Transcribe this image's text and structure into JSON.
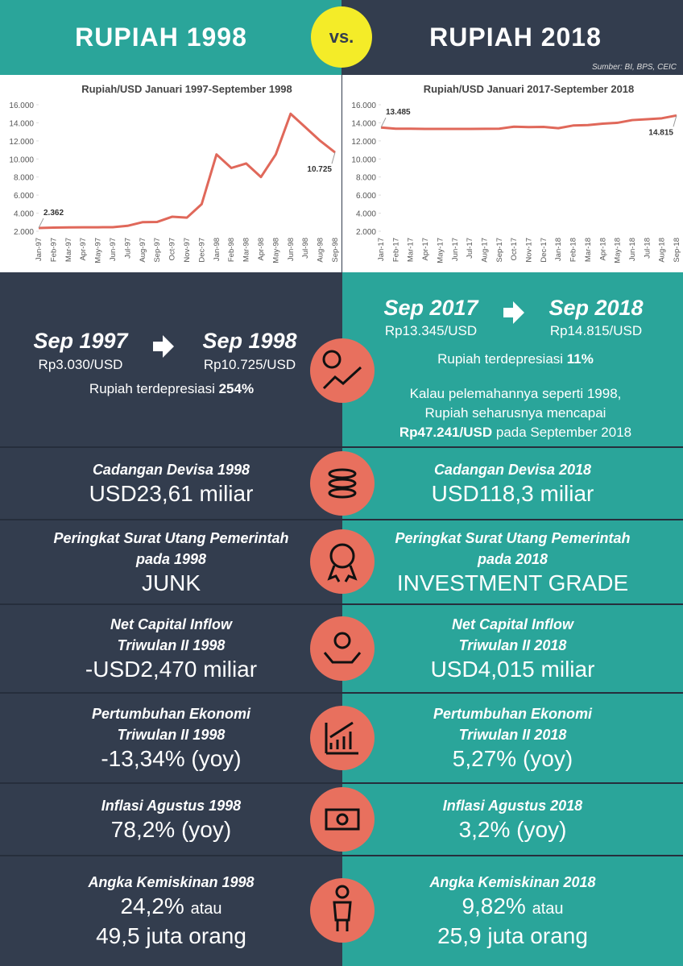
{
  "header": {
    "left_title": "RUPIAH 1998",
    "vs": "vs.",
    "right_title": "RUPIAH 2018",
    "source": "Sumber: BI, BPS, CEIC"
  },
  "chart_data": [
    {
      "type": "line",
      "title": "Rupiah/USD Januari 1997-September 1998",
      "categories": [
        "Jan-97",
        "Feb-97",
        "Mar-97",
        "Apr-97",
        "May-97",
        "Jun-97",
        "Jul-97",
        "Aug-97",
        "Sep-97",
        "Oct-97",
        "Nov-97",
        "Dec-97",
        "Jan-98",
        "Feb-98",
        "Mar-98",
        "Apr-98",
        "May-98",
        "Jun-98",
        "Jul-98",
        "Aug-98",
        "Sep-98"
      ],
      "series": [
        {
          "name": "Rupiah/USD",
          "color": "#e0685a",
          "values": [
            2362,
            2400,
            2420,
            2440,
            2440,
            2450,
            2600,
            3000,
            3030,
            3600,
            3500,
            5000,
            10500,
            9000,
            9500,
            8000,
            10500,
            15000,
            13500,
            12000,
            10725
          ]
        }
      ],
      "annotations": [
        {
          "x": "Jan-97",
          "value": 2362,
          "label": "2.362"
        },
        {
          "x": "Sep-98",
          "value": 10725,
          "label": "10.725"
        }
      ],
      "ylim": [
        2000,
        16000
      ],
      "yticks": [
        {
          "value": 2000,
          "label": "2.000"
        },
        {
          "value": 4000,
          "label": "4.000"
        },
        {
          "value": 6000,
          "label": "6.000"
        },
        {
          "value": 8000,
          "label": "8.000"
        },
        {
          "value": 10000,
          "label": "10.000"
        },
        {
          "value": 12000,
          "label": "12.000"
        },
        {
          "value": 14000,
          "label": "14.000"
        },
        {
          "value": 16000,
          "label": "16.000"
        }
      ]
    },
    {
      "type": "line",
      "title": "Rupiah/USD Januari 2017-September 2018",
      "categories": [
        "Jan-17",
        "Feb-17",
        "Mar-17",
        "Apr-17",
        "May-17",
        "Jun-17",
        "Jul-17",
        "Aug-17",
        "Sep-17",
        "Oct-17",
        "Nov-17",
        "Dec-17",
        "Jan-18",
        "Feb-18",
        "Mar-18",
        "Apr-18",
        "May-18",
        "Jun-18",
        "Jul-18",
        "Aug-18",
        "Sep-18"
      ],
      "series": [
        {
          "name": "Rupiah/USD",
          "color": "#e0685a",
          "values": [
            13485,
            13350,
            13350,
            13330,
            13320,
            13320,
            13320,
            13340,
            13345,
            13570,
            13530,
            13550,
            13400,
            13700,
            13750,
            13900,
            14000,
            14300,
            14400,
            14500,
            14815
          ]
        }
      ],
      "annotations": [
        {
          "x": "Jan-17",
          "value": 13485,
          "label": "13.485"
        },
        {
          "x": "Sep-18",
          "value": 14815,
          "label": "14.815"
        }
      ],
      "ylim": [
        2000,
        16000
      ],
      "yticks": [
        {
          "value": 2000,
          "label": "2.000"
        },
        {
          "value": 4000,
          "label": "4.000"
        },
        {
          "value": 6000,
          "label": "6.000"
        },
        {
          "value": 8000,
          "label": "8.000"
        },
        {
          "value": 10000,
          "label": "10.000"
        },
        {
          "value": 12000,
          "label": "12.000"
        },
        {
          "value": 14000,
          "label": "14.000"
        },
        {
          "value": 16000,
          "label": "16.000"
        }
      ]
    }
  ],
  "depreciation": {
    "left": {
      "from_label": "Sep 1997",
      "from_value": "Rp3.030/USD",
      "to_label": "Sep 1998",
      "to_value": "Rp10.725/USD",
      "note": "Rupiah terdepresiasi",
      "note_bold": "254%"
    },
    "right": {
      "from_label": "Sep 2017",
      "from_value": "Rp13.345/USD",
      "to_label": "Sep 2018",
      "to_value": "Rp14.815/USD",
      "note": "Rupiah terdepresiasi",
      "note_bold": "11%",
      "extra_lines": [
        "Kalau pelemahannya seperti 1998,",
        "Rupiah seharusnya mencapai"
      ],
      "extra_bold": "Rp47.241/USD",
      "extra_tail": "pada September 2018"
    }
  },
  "rows": [
    {
      "left": {
        "title": [
          "Cadangan Devisa 1998"
        ],
        "value": "USD23,61 miliar"
      },
      "right": {
        "title": [
          "Cadangan Devisa 2018"
        ],
        "value": "USD118,3 miliar"
      }
    },
    {
      "left": {
        "title": [
          "Peringkat Surat Utang Pemerintah",
          "pada 1998"
        ],
        "value": "JUNK"
      },
      "right": {
        "title": [
          "Peringkat Surat Utang Pemerintah",
          "pada 2018"
        ],
        "value": "INVESTMENT GRADE"
      }
    },
    {
      "left": {
        "title": [
          "Net Capital Inflow",
          "Triwulan II 1998"
        ],
        "value": "-USD2,470 miliar"
      },
      "right": {
        "title": [
          "Net Capital Inflow",
          "Triwulan II 2018"
        ],
        "value": "USD4,015 miliar"
      }
    },
    {
      "left": {
        "title": [
          "Pertumbuhan Ekonomi",
          "Triwulan II 1998"
        ],
        "value": "-13,34% (yoy)"
      },
      "right": {
        "title": [
          "Pertumbuhan Ekonomi",
          "Triwulan II 2018"
        ],
        "value": "5,27% (yoy)"
      }
    },
    {
      "left": {
        "title": [
          "Inflasi Agustus 1998"
        ],
        "value": "78,2% (yoy)"
      },
      "right": {
        "title": [
          "Inflasi Agustus 2018"
        ],
        "value": "3,2% (yoy)"
      }
    },
    {
      "left": {
        "title": [
          "Angka Kemiskinan 1998"
        ],
        "value": "24,2%",
        "connector": "atau",
        "value2": "49,5 juta orang"
      },
      "right": {
        "title": [
          "Angka Kemiskinan 2018"
        ],
        "value": "9,82%",
        "connector": "atau",
        "value2": "25,9 juta orang"
      }
    }
  ]
}
